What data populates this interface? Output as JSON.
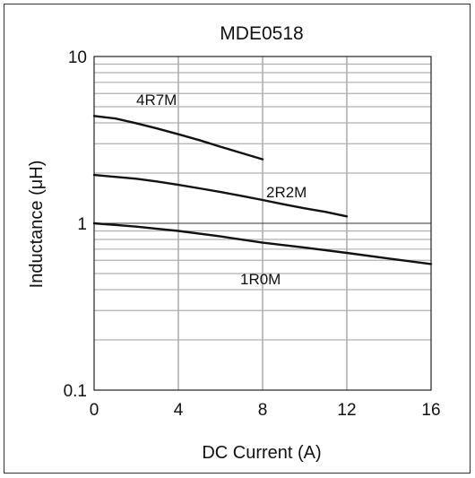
{
  "chart_data": {
    "type": "line",
    "title": "MDE0518",
    "xlabel": "DC Current (A)",
    "ylabel": "Inductance (μH)",
    "xlim": [
      0,
      16
    ],
    "ylim": [
      0.1,
      10
    ],
    "yscale": "log",
    "grid": true,
    "x_ticks": [
      0,
      4,
      8,
      12,
      16
    ],
    "x_tick_labels": [
      "0",
      "4",
      "8",
      "12",
      "16"
    ],
    "y_ticks": [
      0.1,
      1,
      10
    ],
    "y_tick_labels": [
      "0.1",
      "1",
      "10"
    ],
    "series": [
      {
        "name": "4R7M",
        "x": [
          0,
          1,
          2,
          3,
          4,
          5,
          6,
          7,
          8
        ],
        "y": [
          4.4,
          4.25,
          3.98,
          3.7,
          3.42,
          3.15,
          2.88,
          2.64,
          2.42
        ]
      },
      {
        "name": "2R2M",
        "x": [
          0,
          1,
          2,
          3,
          4,
          5,
          6,
          7,
          8,
          9,
          10,
          11,
          12
        ],
        "y": [
          1.95,
          1.9,
          1.85,
          1.78,
          1.7,
          1.62,
          1.54,
          1.46,
          1.38,
          1.3,
          1.23,
          1.17,
          1.1
        ]
      },
      {
        "name": "1R0M",
        "x": [
          0,
          2,
          4,
          6,
          8,
          10,
          12,
          14,
          16
        ],
        "y": [
          1.0,
          0.955,
          0.9,
          0.835,
          0.765,
          0.715,
          0.665,
          0.615,
          0.57
        ]
      }
    ],
    "colors": {
      "line": "#111111",
      "grid": "#b0b0b0",
      "axis": "#222222"
    }
  }
}
